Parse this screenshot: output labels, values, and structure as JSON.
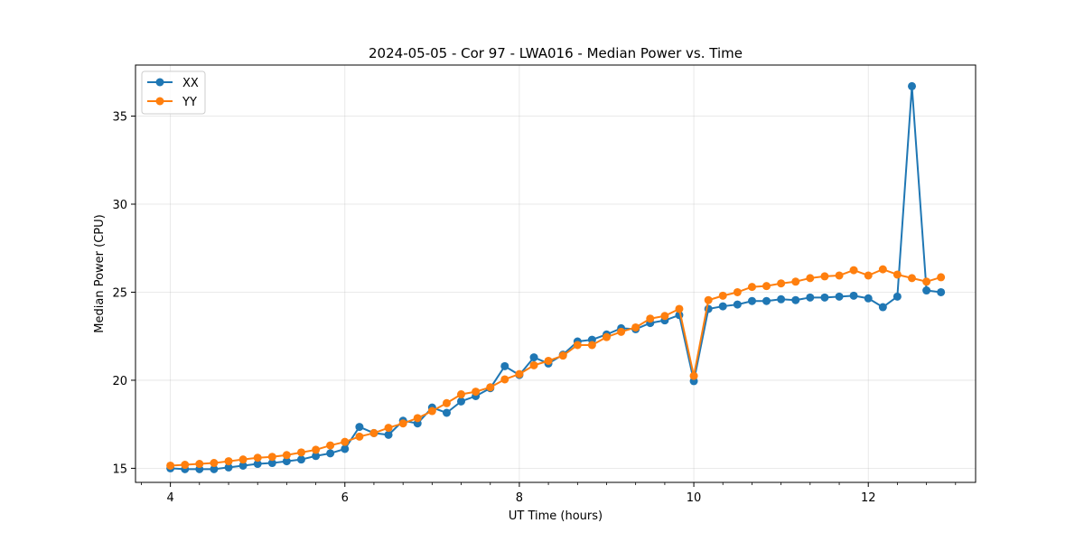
{
  "chart_data": {
    "type": "line",
    "title": "2024-05-05 - Cor 97 - LWA016 - Median Power vs. Time",
    "xlabel": "UT Time (hours)",
    "ylabel": "Median Power (CPU)",
    "xlim": [
      3.6,
      13.23
    ],
    "ylim": [
      14.2,
      37.9
    ],
    "xticks": [
      4,
      6,
      8,
      10,
      12
    ],
    "xticks_minor": [
      3.667,
      4.333,
      4.667,
      5,
      5.333,
      5.667,
      6.333,
      6.667,
      7,
      7.333,
      7.667,
      8.333,
      8.667,
      9,
      9.333,
      9.667,
      10.333,
      10.667,
      11,
      11.333,
      11.667,
      12.333,
      12.667,
      13
    ],
    "yticks": [
      15,
      20,
      25,
      30,
      35
    ],
    "grid": true,
    "legend_position": "top-left",
    "x": [
      4.0,
      4.167,
      4.333,
      4.5,
      4.667,
      4.833,
      5.0,
      5.167,
      5.333,
      5.5,
      5.667,
      5.833,
      6.0,
      6.167,
      6.333,
      6.5,
      6.667,
      6.833,
      7.0,
      7.167,
      7.333,
      7.5,
      7.667,
      7.833,
      8.0,
      8.167,
      8.333,
      8.5,
      8.667,
      8.833,
      9.0,
      9.167,
      9.333,
      9.5,
      9.667,
      9.833,
      10.0,
      10.167,
      10.333,
      10.5,
      10.667,
      10.833,
      11.0,
      11.167,
      11.333,
      11.5,
      11.667,
      11.833,
      12.0,
      12.167,
      12.333,
      12.5,
      12.667,
      12.833
    ],
    "series": [
      {
        "name": "XX",
        "color": "#1f77b4",
        "values": [
          15.0,
          14.95,
          14.95,
          14.95,
          15.05,
          15.15,
          15.25,
          15.3,
          15.4,
          15.5,
          15.7,
          15.85,
          16.1,
          17.35,
          17.0,
          16.9,
          17.7,
          17.55,
          18.45,
          18.15,
          18.8,
          19.1,
          19.55,
          20.8,
          20.3,
          21.3,
          20.95,
          21.45,
          22.2,
          22.3,
          22.6,
          22.95,
          22.9,
          23.25,
          23.4,
          23.7,
          19.95,
          24.05,
          24.2,
          24.3,
          24.5,
          24.5,
          24.6,
          24.55,
          24.7,
          24.7,
          24.75,
          24.8,
          24.65,
          24.15,
          24.75,
          36.7,
          25.1,
          25.0
        ]
      },
      {
        "name": "YY",
        "color": "#ff7f0e",
        "values": [
          15.15,
          15.2,
          15.25,
          15.3,
          15.4,
          15.5,
          15.6,
          15.65,
          15.75,
          15.9,
          16.05,
          16.3,
          16.5,
          16.8,
          17.0,
          17.3,
          17.55,
          17.85,
          18.25,
          18.7,
          19.2,
          19.35,
          19.6,
          20.05,
          20.35,
          20.85,
          21.1,
          21.4,
          22.0,
          22.0,
          22.45,
          22.75,
          23.0,
          23.5,
          23.65,
          24.05,
          20.25,
          24.55,
          24.8,
          25.0,
          25.3,
          25.35,
          25.5,
          25.6,
          25.8,
          25.9,
          25.95,
          26.25,
          25.95,
          26.3,
          26.0,
          25.8,
          25.6,
          25.85
        ]
      }
    ]
  }
}
